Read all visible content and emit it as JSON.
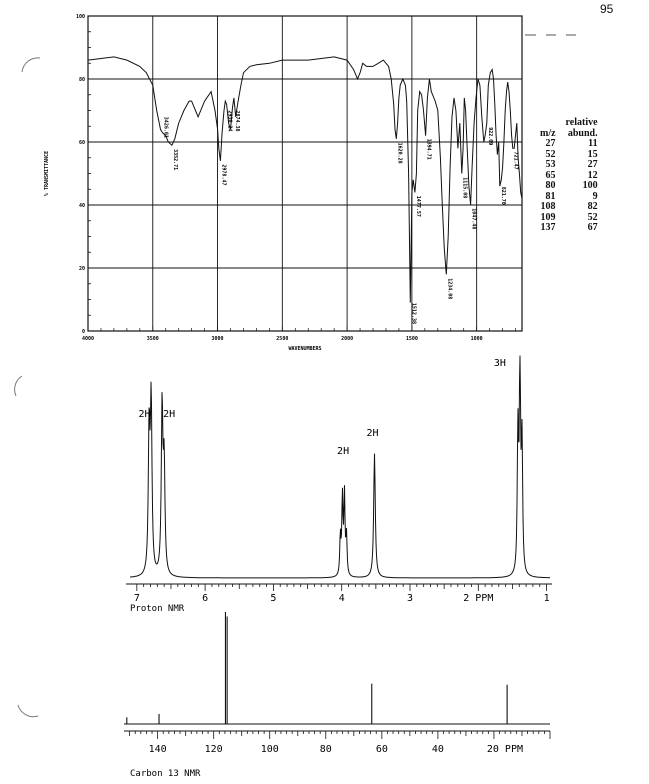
{
  "page": {
    "number": "95"
  },
  "chart_data": [
    {
      "type": "line",
      "name": "ir",
      "xlabel": "WAVENUMBERS",
      "ylabel": "% TRANSMITTANCE",
      "x_ticks": [
        "4000",
        "3500",
        "3000",
        "2500",
        "2000",
        "1500",
        "1000"
      ],
      "y_ticks": [
        "100",
        "80",
        "60",
        "40",
        "20",
        "0"
      ],
      "xlim": [
        4000,
        650
      ],
      "ylim": [
        0,
        100
      ],
      "grid": true,
      "peaks": [
        {
          "x": 3426.01,
          "label": "3426.01"
        },
        {
          "x": 3352.71,
          "label": "3352.71"
        },
        {
          "x": 2978.47,
          "label": "2978.47"
        },
        {
          "x": 2930.24,
          "label": "2930.24"
        },
        {
          "x": 2874.38,
          "label": "2874.38"
        },
        {
          "x": 1620.28,
          "label": "1620.28"
        },
        {
          "x": 1512.38,
          "label": "1512.38"
        },
        {
          "x": 1477.57,
          "label": "1477.57"
        },
        {
          "x": 1394.71,
          "label": "1394.71"
        },
        {
          "x": 1234.08,
          "label": "1234.08"
        },
        {
          "x": 1115.08,
          "label": "1115.08"
        },
        {
          "x": 1047.48,
          "label": "1047.48"
        },
        {
          "x": 922.09,
          "label": "922.09"
        },
        {
          "x": 821.7,
          "label": "821.70"
        },
        {
          "x": 721.47,
          "label": "721.47"
        }
      ],
      "x": [
        4000,
        3900,
        3800,
        3700,
        3600,
        3550,
        3500,
        3470,
        3440,
        3426,
        3400,
        3380,
        3352,
        3330,
        3300,
        3260,
        3220,
        3200,
        3180,
        3150,
        3100,
        3050,
        3020,
        3000,
        2990,
        2978,
        2965,
        2950,
        2940,
        2930,
        2915,
        2900,
        2885,
        2874,
        2860,
        2845,
        2820,
        2800,
        2750,
        2700,
        2600,
        2500,
        2400,
        2300,
        2200,
        2100,
        2000,
        1950,
        1920,
        1900,
        1880,
        1850,
        1800,
        1760,
        1720,
        1700,
        1680,
        1660,
        1640,
        1630,
        1620,
        1610,
        1600,
        1590,
        1570,
        1550,
        1540,
        1525,
        1512,
        1500,
        1490,
        1477,
        1465,
        1455,
        1440,
        1425,
        1410,
        1394,
        1380,
        1365,
        1350,
        1320,
        1300,
        1280,
        1265,
        1250,
        1234,
        1220,
        1205,
        1190,
        1175,
        1160,
        1145,
        1130,
        1115,
        1105,
        1095,
        1085,
        1075,
        1060,
        1047,
        1035,
        1020,
        1005,
        990,
        975,
        960,
        945,
        935,
        922,
        910,
        895,
        880,
        870,
        860,
        850,
        840,
        830,
        821,
        810,
        800,
        790,
        780,
        770,
        760,
        750,
        740,
        730,
        721,
        710,
        700,
        690,
        680,
        670,
        660,
        650
      ],
      "y": [
        86,
        86.5,
        87,
        86,
        84,
        82,
        78,
        70,
        64,
        63,
        62,
        60,
        59,
        61,
        66,
        70,
        73,
        73,
        71,
        68,
        73,
        76,
        70,
        64,
        58,
        54,
        63,
        70,
        73,
        72,
        66,
        64,
        71,
        74,
        68,
        72,
        78,
        82,
        84,
        84.5,
        85,
        86,
        86,
        86,
        86.5,
        87,
        86,
        83,
        80,
        82,
        85,
        84,
        84,
        85,
        86,
        85,
        84,
        80,
        72,
        64,
        61,
        66,
        74,
        78,
        80,
        78,
        73,
        50,
        9,
        44,
        48,
        44,
        50,
        70,
        76,
        75,
        70,
        62,
        74,
        80,
        76,
        73,
        70,
        55,
        40,
        26,
        18,
        30,
        52,
        68,
        74,
        70,
        58,
        66,
        50,
        58,
        74,
        70,
        60,
        46,
        40,
        52,
        66,
        74,
        80,
        78,
        68,
        60,
        62,
        66,
        78,
        82,
        83,
        80,
        72,
        62,
        56,
        60,
        46,
        48,
        52,
        60,
        70,
        76,
        79,
        76,
        70,
        62,
        58,
        58,
        62,
        66,
        55,
        50,
        44,
        42
      ]
    },
    {
      "type": "line",
      "name": "proton",
      "xlabel": "Proton NMR",
      "x_ticks": [
        "7",
        "6",
        "5",
        "4",
        "3",
        "2 PPM",
        "1"
      ],
      "xlim": [
        7.1,
        0.95
      ],
      "peaks": [
        {
          "ppm": 6.82,
          "height": 0.66,
          "w": 0.014
        },
        {
          "ppm": 6.79,
          "height": 0.78,
          "w": 0.014
        },
        {
          "ppm": 6.63,
          "height": 0.77,
          "w": 0.014
        },
        {
          "ppm": 6.6,
          "height": 0.49,
          "w": 0.014
        },
        {
          "ppm": 4.02,
          "height": 0.18,
          "w": 0.01
        },
        {
          "ppm": 3.99,
          "height": 0.36,
          "w": 0.01
        },
        {
          "ppm": 3.96,
          "height": 0.37,
          "w": 0.01
        },
        {
          "ppm": 3.93,
          "height": 0.18,
          "w": 0.01
        },
        {
          "ppm": 3.52,
          "height": 0.57,
          "w": 0.014
        },
        {
          "ppm": 1.42,
          "height": 0.64,
          "w": 0.011
        },
        {
          "ppm": 1.39,
          "height": 1.0,
          "w": 0.011
        },
        {
          "ppm": 1.36,
          "height": 0.59,
          "w": 0.011
        }
      ],
      "integrations": [
        {
          "label": "2H",
          "ppm": 6.8
        },
        {
          "label": "2H",
          "ppm": 6.6
        },
        {
          "label": "2H",
          "ppm": 3.98
        },
        {
          "label": "2H",
          "ppm": 3.52
        },
        {
          "label": "3H",
          "ppm": 1.45
        }
      ]
    },
    {
      "type": "line",
      "name": "carbon",
      "xlabel": "Carbon 13 NMR",
      "x_ticks": [
        "140",
        "120",
        "100",
        "80",
        "60",
        "40",
        "20 PPM"
      ],
      "xlim": [
        152,
        0
      ],
      "peaks": [
        {
          "ppm": 151.0,
          "height": 0.06
        },
        {
          "ppm": 139.5,
          "height": 0.09
        },
        {
          "ppm": 115.8,
          "height": 1.0
        },
        {
          "ppm": 115.2,
          "height": 0.96
        },
        {
          "ppm": 63.6,
          "height": 0.36
        },
        {
          "ppm": 15.3,
          "height": 0.35
        }
      ]
    }
  ],
  "mass_spec": {
    "header1": "relative",
    "header_mz": "m/z",
    "header2": "abund.",
    "rows": [
      {
        "mz": "27",
        "abund": "11"
      },
      {
        "mz": "52",
        "abund": "15"
      },
      {
        "mz": "53",
        "abund": "27"
      },
      {
        "mz": "65",
        "abund": "12"
      },
      {
        "mz": "80",
        "abund": "100"
      },
      {
        "mz": "81",
        "abund": "9"
      },
      {
        "mz": "108",
        "abund": "82"
      },
      {
        "mz": "109",
        "abund": "52"
      },
      {
        "mz": "137",
        "abund": "67"
      }
    ]
  }
}
